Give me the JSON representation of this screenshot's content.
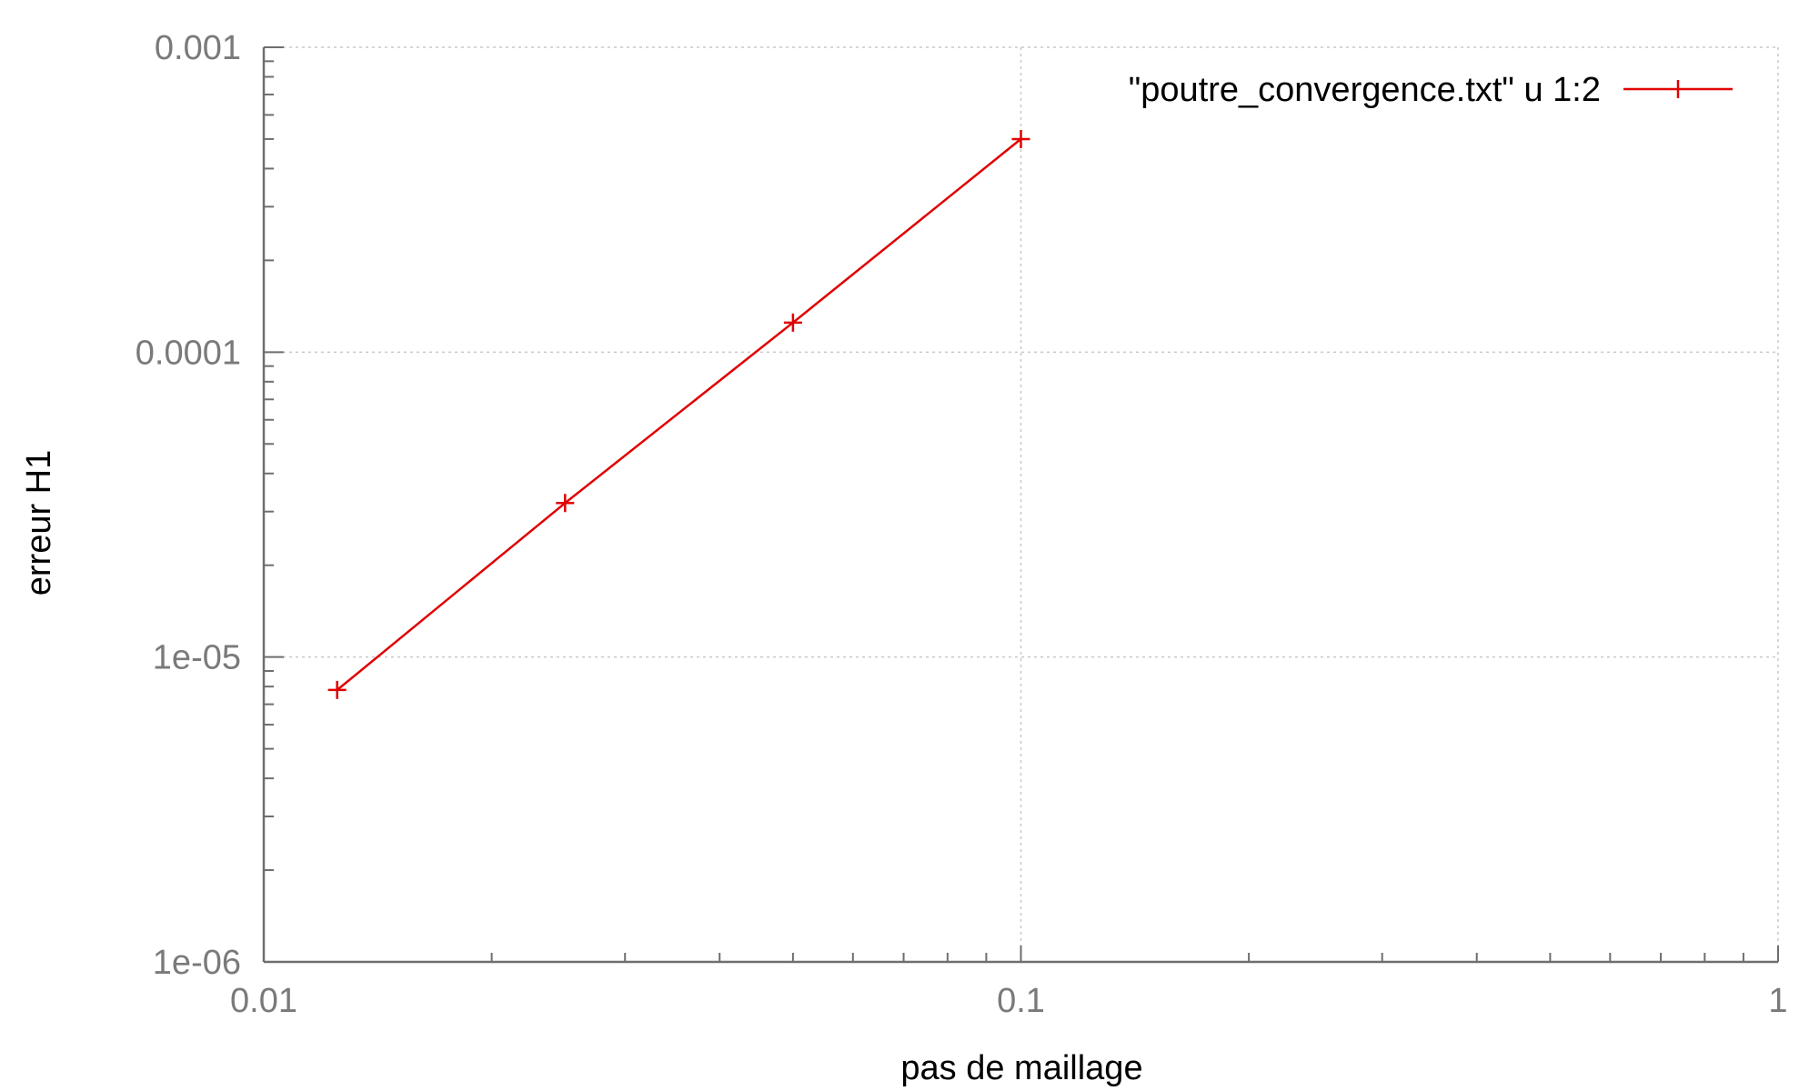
{
  "chart_data": {
    "type": "line",
    "title": "",
    "xlabel": "pas de maillage",
    "ylabel": "erreur H1",
    "x_scale": "log",
    "y_scale": "log",
    "xlim": [
      0.01,
      1
    ],
    "ylim": [
      1e-06,
      0.001
    ],
    "x_ticks": [
      {
        "value": 0.01,
        "label": "0.01"
      },
      {
        "value": 0.1,
        "label": "0.1"
      },
      {
        "value": 1,
        "label": "1"
      }
    ],
    "y_ticks": [
      {
        "value": 1e-06,
        "label": "1e-06"
      },
      {
        "value": 1e-05,
        "label": "1e-05"
      },
      {
        "value": 0.0001,
        "label": "0.0001"
      },
      {
        "value": 0.001,
        "label": "0.001"
      }
    ],
    "grid": true,
    "legend_position": "top-right",
    "series": [
      {
        "name": "\"poutre_convergence.txt\" u 1:2",
        "color": "#e00000",
        "marker": "plus",
        "x": [
          0.0125,
          0.025,
          0.05,
          0.1
        ],
        "y": [
          7.8e-06,
          3.2e-05,
          0.000125,
          0.0005
        ]
      }
    ]
  }
}
